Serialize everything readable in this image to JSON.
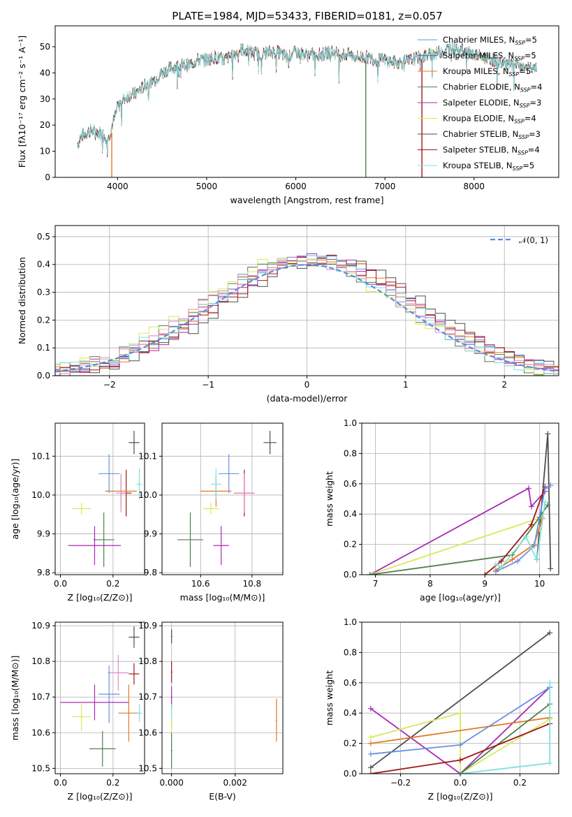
{
  "title": "PLATE=1984, MJD=53433, FIBERID=0181, z=0.057",
  "colors": {
    "chabrier_miles": "#6b8fe0",
    "salpeter_miles": "#4a79c8",
    "kroupa_miles": "#e07b27",
    "chabrier_elodie": "#4e7f4e",
    "salpeter_elodie": "#a82ab5",
    "kroupa_elodie": "#d9e85a",
    "chabrier_stelib": "#4d4d4d",
    "salpeter_stelib": "#a11616",
    "kroupa_stelib": "#7fe0e0",
    "pink": "#e88ac8",
    "normal": "#5b8ce0",
    "grid": "#b0b0b0"
  },
  "legend_entries": [
    {
      "base": "Chabrier MILES, N",
      "sub": "SSP",
      "suffix": "=5",
      "color_key": "chabrier_miles"
    },
    {
      "base": "Salpeter MILES, N",
      "sub": "SSP",
      "suffix": "=5",
      "color_key": "salpeter_miles"
    },
    {
      "base": "Kroupa MILES, N",
      "sub": "SSP",
      "suffix": "=5",
      "color_key": "kroupa_miles"
    },
    {
      "base": "Chabrier ELODIE, N",
      "sub": "SSP",
      "suffix": "=4",
      "color_key": "chabrier_elodie"
    },
    {
      "base": "Salpeter ELODIE, N",
      "sub": "SSP",
      "suffix": "=3",
      "color_key": "salpeter_elodie"
    },
    {
      "base": "Kroupa ELODIE, N",
      "sub": "SSP",
      "suffix": "=4",
      "color_key": "kroupa_elodie"
    },
    {
      "base": "Chabrier STELIB, N",
      "sub": "SSP",
      "suffix": "=3",
      "color_key": "chabrier_stelib"
    },
    {
      "base": "Salpeter STELIB, N",
      "sub": "SSP",
      "suffix": "=4",
      "color_key": "salpeter_stelib"
    },
    {
      "base": "Kroupa STELIB, N",
      "sub": "SSP",
      "suffix": "=5",
      "color_key": "kroupa_stelib"
    }
  ],
  "chart_data": [
    {
      "type": "line",
      "xlabel": "wavelength [Angstrom, rest frame]",
      "ylabel": "Flux [fλ10⁻¹⁷ erg cm⁻² s⁻¹ A⁻¹]",
      "xlim": [
        3300,
        8950
      ],
      "ylim": [
        0,
        58
      ],
      "xticks": [
        "4000",
        "5000",
        "6000",
        "7000",
        "8000"
      ],
      "yticks": [
        "0",
        "10",
        "20",
        "30",
        "40",
        "50"
      ],
      "grid": false,
      "legend": "upper right",
      "spectrum_x": [
        3550,
        3600,
        3700,
        3800,
        3900,
        4000,
        4100,
        4200,
        4300,
        4400,
        4500,
        4600,
        4700,
        4800,
        4900,
        5000,
        5100,
        5200,
        5300,
        5400,
        5500,
        5600,
        5700,
        5800,
        5900,
        6000,
        6100,
        6200,
        6300,
        6400,
        6500,
        6600,
        6700,
        6800,
        6900,
        7000,
        7100,
        7200,
        7300,
        7400,
        7500,
        7600,
        7700,
        7800,
        7900,
        8000,
        8100,
        8200,
        8300,
        8400,
        8500,
        8600,
        8700
      ],
      "spectrum_y": [
        13,
        16,
        18,
        17,
        15,
        27,
        31,
        32,
        35,
        37,
        40,
        42,
        43,
        43,
        45,
        45,
        46,
        45,
        47,
        49,
        48,
        47,
        48,
        48,
        46,
        48,
        47,
        47,
        47,
        48,
        47,
        47,
        46,
        46,
        45,
        45,
        44,
        44,
        45,
        46,
        47,
        48,
        49,
        50,
        48,
        47,
        46,
        45,
        44,
        43,
        43,
        42,
        41
      ],
      "notes_spikes_x": [
        3935,
        6785,
        7415
      ]
    },
    {
      "type": "line",
      "xlabel": "(data-model)/error",
      "ylabel": "Normed distribution",
      "xlim": [
        -2.55,
        2.55
      ],
      "ylim": [
        0,
        0.54
      ],
      "xticks": [
        "−2",
        "−1",
        "0",
        "1",
        "2"
      ],
      "yticks": [
        "0.0",
        "0.1",
        "0.2",
        "0.3",
        "0.4",
        "0.5"
      ],
      "grid": true,
      "legend": "upper right",
      "series": [
        {
          "name": "𝒩(0, 1)",
          "type": "dashed",
          "mu": 0,
          "sigma": 1
        }
      ]
    },
    {
      "type": "scatter",
      "xlabel": "Z [log₁₀(Z/Z⊙)]",
      "ylabel": "age  [log₁₀(age/yr)]",
      "xlim": [
        -0.02,
        0.32
      ],
      "ylim": [
        9.795,
        10.185
      ],
      "xticks": [
        "0.0",
        "0.2"
      ],
      "yticks": [
        "9.8",
        "9.9",
        "10.0",
        "10.1"
      ],
      "grid": true,
      "points": [
        {
          "x": 0.28,
          "y": 10.135,
          "xerr": 0.02,
          "yerr": 0.03,
          "color_key": "chabrier_stelib"
        },
        {
          "x": 0.185,
          "y": 10.055,
          "xerr": 0.04,
          "yerr": 0.05,
          "color_key": "chabrier_miles"
        },
        {
          "x": 0.25,
          "y": 10.005,
          "xerr": 0.02,
          "yerr": 0.06,
          "color_key": "salpeter_stelib"
        },
        {
          "x": 0.23,
          "y": 10.01,
          "xerr": 0.06,
          "yerr": 0.04,
          "color_key": "kroupa_miles"
        },
        {
          "x": 0.3,
          "y": 10.028,
          "xerr": 0.01,
          "yerr": 0.04,
          "color_key": "kroupa_stelib"
        },
        {
          "x": 0.08,
          "y": 9.965,
          "xerr": 0.035,
          "yerr": 0.015,
          "color_key": "kroupa_elodie"
        },
        {
          "x": 0.165,
          "y": 9.885,
          "xerr": 0.04,
          "yerr": 0.07,
          "color_key": "chabrier_elodie"
        },
        {
          "x": 0.13,
          "y": 9.87,
          "xerr": 0.1,
          "yerr": 0.05,
          "color_key": "salpeter_elodie"
        },
        {
          "x": 0.23,
          "y": 10.005,
          "xerr": 0.02,
          "yerr": 0.05,
          "color_key": "pink"
        }
      ]
    },
    {
      "type": "scatter",
      "xlabel": "mass [log₁₀(M/M⊙)]",
      "ylabel": "",
      "xlim": [
        10.45,
        10.92
      ],
      "ylim": [
        9.795,
        10.185
      ],
      "xticks": [
        "10.6",
        "10.8"
      ],
      "yticks": [
        "9.8",
        "9.9",
        "10.0",
        "10.1"
      ],
      "grid": true,
      "points": [
        {
          "x": 10.87,
          "y": 10.135,
          "xerr": 0.025,
          "yerr": 0.03,
          "color_key": "chabrier_stelib"
        },
        {
          "x": 10.71,
          "y": 10.055,
          "xerr": 0.04,
          "yerr": 0.05,
          "color_key": "chabrier_miles"
        },
        {
          "x": 10.77,
          "y": 10.005,
          "xerr": 0.04,
          "yerr": 0.06,
          "color_key": "salpeter_stelib"
        },
        {
          "x": 10.66,
          "y": 10.01,
          "xerr": 0.06,
          "yerr": 0.04,
          "color_key": "kroupa_miles"
        },
        {
          "x": 10.66,
          "y": 10.028,
          "xerr": 0.02,
          "yerr": 0.04,
          "color_key": "kroupa_stelib"
        },
        {
          "x": 10.64,
          "y": 9.965,
          "xerr": 0.03,
          "yerr": 0.015,
          "color_key": "kroupa_elodie"
        },
        {
          "x": 10.56,
          "y": 9.885,
          "xerr": 0.05,
          "yerr": 0.07,
          "color_key": "chabrier_elodie"
        },
        {
          "x": 10.68,
          "y": 9.87,
          "xerr": 0.03,
          "yerr": 0.05,
          "color_key": "salpeter_elodie"
        },
        {
          "x": 10.77,
          "y": 10.005,
          "xerr": 0.04,
          "yerr": 0.05,
          "color_key": "pink"
        }
      ]
    },
    {
      "type": "line",
      "xlabel": "age  [log₁₀(age/yr)]",
      "ylabel": "mass weight",
      "xlim": [
        6.75,
        10.35
      ],
      "ylim": [
        0,
        1.0
      ],
      "xticks": [
        "7",
        "8",
        "9",
        "10"
      ],
      "yticks": [
        "0.0",
        "0.2",
        "0.4",
        "0.6",
        "0.8",
        "1.0"
      ],
      "grid": true,
      "series": [
        {
          "color_key": "chabrier_stelib",
          "x": [
            9.95,
            10.15,
            10.2
          ],
          "y": [
            0.1,
            0.93,
            0.04
          ]
        },
        {
          "color_key": "salpeter_elodie",
          "x": [
            6.9,
            9.8,
            9.85,
            10.1
          ],
          "y": [
            0.0,
            0.57,
            0.45,
            0.55
          ]
        },
        {
          "color_key": "kroupa_elodie",
          "x": [
            6.9,
            10.05,
            10.0
          ],
          "y": [
            0.0,
            0.38,
            0.3
          ]
        },
        {
          "color_key": "chabrier_elodie",
          "x": [
            6.9,
            9.5,
            10.0,
            10.15
          ],
          "y": [
            0.0,
            0.13,
            0.38,
            0.46
          ]
        },
        {
          "color_key": "salpeter_stelib",
          "x": [
            9.0,
            9.3,
            9.85,
            10.1
          ],
          "y": [
            0.0,
            0.09,
            0.33,
            0.58
          ]
        },
        {
          "color_key": "kroupa_miles",
          "x": [
            9.2,
            9.5,
            9.9,
            10.05
          ],
          "y": [
            0.03,
            0.1,
            0.2,
            0.37
          ]
        },
        {
          "color_key": "chabrier_miles",
          "x": [
            9.2,
            9.6,
            9.9,
            10.1,
            10.2
          ],
          "y": [
            0.02,
            0.09,
            0.19,
            0.57,
            0.59
          ]
        },
        {
          "color_key": "kroupa_stelib",
          "x": [
            9.2,
            9.3,
            9.75,
            9.95,
            10.1
          ],
          "y": [
            0.07,
            0.05,
            0.25,
            0.1,
            0.48
          ]
        }
      ]
    },
    {
      "type": "scatter",
      "xlabel": "Z [log₁₀(Z/Z⊙)]",
      "ylabel": "mass [log₁₀(M/M⊙)]",
      "xlim": [
        -0.02,
        0.32
      ],
      "ylim": [
        10.485,
        10.91
      ],
      "xticks": [
        "0.0",
        "0.2"
      ],
      "yticks": [
        "10.5",
        "10.6",
        "10.7",
        "10.8",
        "10.9"
      ],
      "grid": true,
      "points": [
        {
          "x": 0.28,
          "y": 10.868,
          "xerr": 0.02,
          "yerr": 0.03,
          "color_key": "chabrier_stelib"
        },
        {
          "x": 0.22,
          "y": 10.768,
          "xerr": 0.04,
          "yerr": 0.05,
          "color_key": "pink"
        },
        {
          "x": 0.28,
          "y": 10.765,
          "xerr": 0.02,
          "yerr": 0.03,
          "color_key": "salpeter_stelib"
        },
        {
          "x": 0.185,
          "y": 10.708,
          "xerr": 0.04,
          "yerr": 0.08,
          "color_key": "chabrier_miles"
        },
        {
          "x": 0.13,
          "y": 10.685,
          "xerr": 0.13,
          "yerr": 0.05,
          "color_key": "salpeter_elodie"
        },
        {
          "x": 0.26,
          "y": 10.655,
          "xerr": 0.04,
          "yerr": 0.08,
          "color_key": "kroupa_miles"
        },
        {
          "x": 0.3,
          "y": 10.655,
          "xerr": 0.01,
          "yerr": 0.025,
          "color_key": "kroupa_stelib"
        },
        {
          "x": 0.08,
          "y": 10.645,
          "xerr": 0.035,
          "yerr": 0.04,
          "color_key": "kroupa_elodie"
        },
        {
          "x": 0.16,
          "y": 10.555,
          "xerr": 0.05,
          "yerr": 0.05,
          "color_key": "chabrier_elodie"
        }
      ]
    },
    {
      "type": "scatter",
      "xlabel": "E(B-V)",
      "ylabel": "",
      "xlim": [
        -0.0003,
        0.0035
      ],
      "ylim": [
        10.485,
        10.91
      ],
      "xticks": [
        "0.000",
        "0.002"
      ],
      "yticks": [
        "10.5",
        "10.6",
        "10.7",
        "10.8",
        "10.9"
      ],
      "grid": true,
      "points": [
        {
          "x": 0.0,
          "y": 10.87,
          "yerr": 0.02,
          "color_key": "chabrier_stelib"
        },
        {
          "x": 0.0,
          "y": 10.77,
          "yerr": 0.03,
          "color_key": "salpeter_stelib"
        },
        {
          "x": 0.0,
          "y": 10.7,
          "yerr": 0.03,
          "color_key": "salpeter_elodie"
        },
        {
          "x": 0.0,
          "y": 10.65,
          "yerr": 0.03,
          "color_key": "kroupa_stelib"
        },
        {
          "x": 0.0,
          "y": 10.62,
          "yerr": 0.02,
          "color_key": "kroupa_elodie"
        },
        {
          "x": 0.0,
          "y": 10.55,
          "yerr": 0.05,
          "color_key": "chabrier_elodie"
        },
        {
          "x": 0.0033,
          "y": 10.635,
          "yerr": 0.06,
          "color_key": "kroupa_miles"
        }
      ]
    },
    {
      "type": "line",
      "xlabel": "Z [log₁₀(Z/Z⊙)]",
      "ylabel": "mass weight",
      "xlim": [
        -0.33,
        0.33
      ],
      "ylim": [
        0,
        1.0
      ],
      "xticks": [
        "−0.2",
        "0.0",
        "0.2"
      ],
      "yticks": [
        "0.0",
        "0.2",
        "0.4",
        "0.6",
        "0.8",
        "1.0"
      ],
      "grid": true,
      "series": [
        {
          "color_key": "chabrier_stelib",
          "x": [
            -0.3,
            0.3
          ],
          "y": [
            0.04,
            0.93
          ]
        },
        {
          "color_key": "salpeter_elodie",
          "x": [
            -0.3,
            0.0,
            0.3
          ],
          "y": [
            0.43,
            0.0,
            0.57
          ]
        },
        {
          "color_key": "kroupa_elodie",
          "x": [
            -0.3,
            0.0,
            0.0,
            0.3
          ],
          "y": [
            0.24,
            0.4,
            0.0,
            0.36
          ]
        },
        {
          "color_key": "kroupa_miles",
          "x": [
            -0.3,
            0.3
          ],
          "y": [
            0.2,
            0.37
          ]
        },
        {
          "color_key": "chabrier_miles",
          "x": [
            -0.3,
            0.0,
            0.3
          ],
          "y": [
            0.13,
            0.19,
            0.57
          ]
        },
        {
          "color_key": "chabrier_elodie",
          "x": [
            0.0,
            0.3
          ],
          "y": [
            0.0,
            0.46
          ]
        },
        {
          "color_key": "salpeter_stelib",
          "x": [
            -0.3,
            0.0,
            0.3
          ],
          "y": [
            0.0,
            0.09,
            0.33
          ]
        },
        {
          "color_key": "kroupa_stelib",
          "x": [
            0.0,
            0.3,
            0.3
          ],
          "y": [
            0.0,
            0.07,
            0.6
          ]
        }
      ]
    }
  ]
}
